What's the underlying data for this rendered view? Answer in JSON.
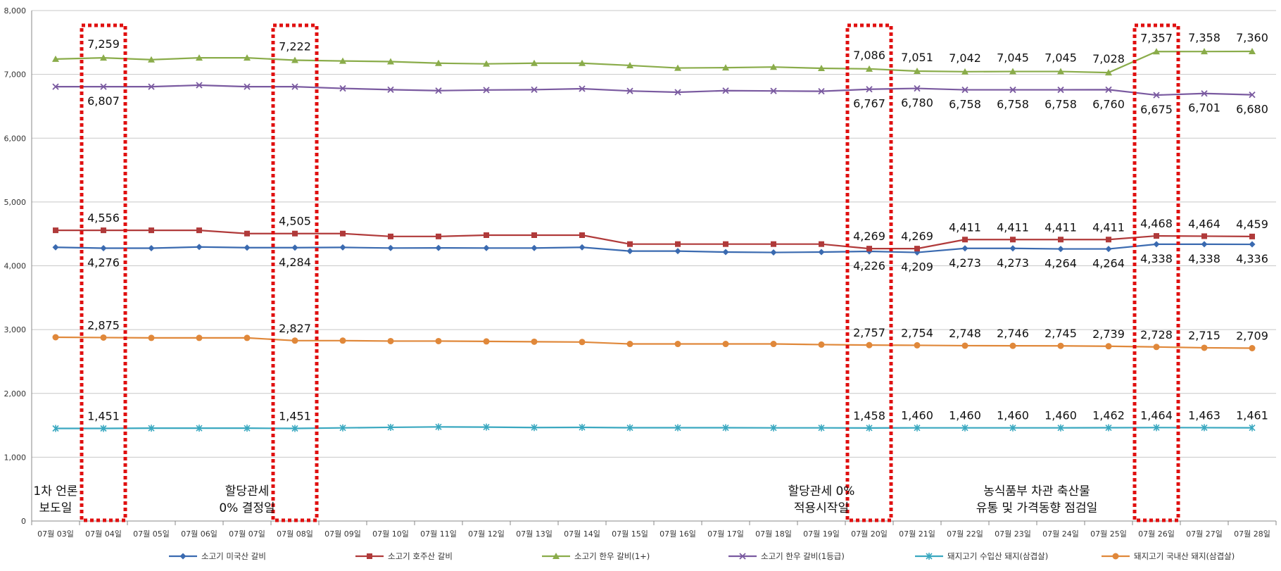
{
  "chart_data": {
    "type": "line",
    "ylim": [
      0,
      8000
    ],
    "yticks": [
      "0",
      "1,000",
      "2,000",
      "3,000",
      "4,000",
      "5,000",
      "6,000",
      "7,000",
      "8,000"
    ],
    "ytick_values": [
      0,
      1000,
      2000,
      3000,
      4000,
      5000,
      6000,
      7000,
      8000
    ],
    "grid": true,
    "legend_position": "bottom",
    "categories": [
      "07월 03일",
      "07월 04일",
      "07월 05일",
      "07월 06일",
      "07월 07일",
      "07월 08일",
      "07월 09일",
      "07월 10일",
      "07월 11일",
      "07월 12일",
      "07월 13일",
      "07월 14일",
      "07월 15일",
      "07월 16일",
      "07월 17일",
      "07월 18일",
      "07월 19일",
      "07월 20일",
      "07월 21일",
      "07월 22일",
      "07월 23일",
      "07월 24일",
      "07월 25일",
      "07월 26일",
      "07월 27일",
      "07월 28일"
    ],
    "series": [
      {
        "name": "소고기 미국산 갈비",
        "color": "#3a6ab0",
        "marker": "diamond",
        "values": [
          4290,
          4276,
          4276,
          4295,
          4284,
          4284,
          4288,
          4278,
          4280,
          4278,
          4278,
          4290,
          4230,
          4230,
          4215,
          4209,
          4215,
          4226,
          4209,
          4273,
          4273,
          4264,
          4264,
          4338,
          4338,
          4336
        ],
        "labels": {
          "1": "4,276",
          "5": "4,284",
          "17": "4,226",
          "18": "4,209",
          "19": "4,273",
          "20": "4,273",
          "21": "4,264",
          "22": "4,264",
          "23": "4,338",
          "24": "4,338",
          "25": "4,336"
        }
      },
      {
        "name": "소고기 호주산 갈비",
        "color": "#b03a3a",
        "marker": "square",
        "values": [
          4556,
          4556,
          4556,
          4556,
          4505,
          4505,
          4505,
          4460,
          4460,
          4480,
          4480,
          4480,
          4340,
          4340,
          4340,
          4340,
          4340,
          4269,
          4269,
          4411,
          4411,
          4411,
          4411,
          4468,
          4464,
          4459
        ],
        "labels": {
          "1": "4,556",
          "5": "4,505",
          "17": "4,269",
          "18": "4,269",
          "19": "4,411",
          "20": "4,411",
          "21": "4,411",
          "22": "4,411",
          "23": "4,468",
          "24": "4,464",
          "25": "4,459"
        }
      },
      {
        "name": "소고기 한우 갈비(1+)",
        "color": "#8aac4a",
        "marker": "triangle",
        "values": [
          7240,
          7259,
          7230,
          7259,
          7259,
          7222,
          7210,
          7200,
          7175,
          7165,
          7175,
          7175,
          7140,
          7100,
          7105,
          7115,
          7095,
          7086,
          7051,
          7042,
          7045,
          7045,
          7028,
          7357,
          7358,
          7360
        ],
        "labels": {
          "1": "7,259",
          "5": "7,222",
          "17": "7,086",
          "18": "7,051",
          "19": "7,042",
          "20": "7,045",
          "21": "7,045",
          "22": "7,028",
          "23": "7,357",
          "24": "7,358",
          "25": "7,360"
        }
      },
      {
        "name": "소고기 한우 갈비(1등급)",
        "color": "#7a5aa0",
        "marker": "x",
        "values": [
          6807,
          6807,
          6807,
          6830,
          6807,
          6807,
          6780,
          6760,
          6745,
          6755,
          6760,
          6775,
          6740,
          6720,
          6745,
          6740,
          6735,
          6767,
          6780,
          6758,
          6758,
          6758,
          6760,
          6675,
          6701,
          6680
        ],
        "labels": {
          "1": "6,807",
          "17": "6,767",
          "18": "6,780",
          "19": "6,758",
          "20": "6,758",
          "21": "6,758",
          "22": "6,760",
          "23": "6,675",
          "24": "6,701",
          "25": "6,680"
        }
      },
      {
        "name": "돼지고기 수입산 돼지(삼겹살)",
        "color": "#3aa8c0",
        "marker": "star",
        "values": [
          1451,
          1451,
          1455,
          1455,
          1455,
          1451,
          1460,
          1468,
          1475,
          1472,
          1465,
          1468,
          1462,
          1462,
          1462,
          1460,
          1460,
          1458,
          1460,
          1460,
          1460,
          1460,
          1462,
          1464,
          1463,
          1461
        ],
        "labels": {
          "1": "1,451",
          "5": "1,451",
          "17": "1,458",
          "18": "1,460",
          "19": "1,460",
          "20": "1,460",
          "21": "1,460",
          "22": "1,462",
          "23": "1,464",
          "24": "1,463",
          "25": "1,461"
        }
      },
      {
        "name": "돼지고기 국내산 돼지(삼겹살)",
        "color": "#e0883a",
        "marker": "circle",
        "values": [
          2880,
          2875,
          2870,
          2870,
          2870,
          2827,
          2827,
          2820,
          2820,
          2815,
          2810,
          2805,
          2775,
          2775,
          2775,
          2775,
          2765,
          2757,
          2754,
          2748,
          2746,
          2745,
          2739,
          2728,
          2715,
          2709
        ],
        "labels": {
          "1": "2,875",
          "5": "2,827",
          "17": "2,757",
          "18": "2,754",
          "19": "2,748",
          "20": "2,746",
          "21": "2,745",
          "22": "2,739",
          "23": "2,728",
          "24": "2,715",
          "25": "2,709"
        }
      }
    ],
    "highlight_categories": [
      1,
      5,
      17,
      23
    ],
    "annotations": [
      {
        "at": 0,
        "lines": [
          "1차 언론",
          "보도일"
        ]
      },
      {
        "at": 4,
        "lines": [
          "할당관세",
          "0% 결정일"
        ]
      },
      {
        "at": 16,
        "lines": [
          "할당관세 0%",
          "적용시작일"
        ]
      },
      {
        "at": 20.5,
        "lines": [
          "농식품부 차관 축산물",
          "유통 및 가격동향 점검일"
        ]
      }
    ]
  }
}
